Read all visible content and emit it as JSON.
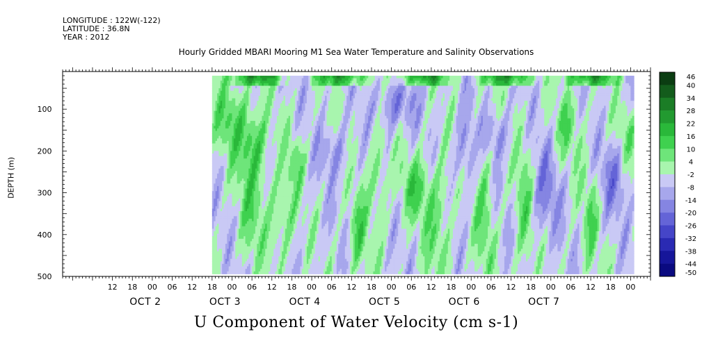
{
  "header": {
    "longitude": "LONGITUDE : 122W(-122)",
    "latitude": "LATITUDE : 36.8N",
    "year": "YEAR : 2012"
  },
  "chart_data": {
    "type": "heatmap",
    "title": "Hourly Gridded MBARI Mooring M1 Sea Water Temperature and Salinity Observations",
    "xlabel": "U Component of Water Velocity (cm s-1)",
    "ylabel": "DEPTH (m)",
    "x_unit": "hours since OCT 2 00:00 (2012)",
    "xlim": [
      -27,
      150
    ],
    "ylim": [
      500,
      10
    ],
    "data_depth_range": [
      20,
      490
    ],
    "data_time_range": [
      18,
      145
    ],
    "yticks": [
      100,
      200,
      300,
      400,
      500
    ],
    "xtick_hours": [
      "12",
      "18",
      "00",
      "06",
      "12",
      "18",
      "00",
      "06",
      "12",
      "18",
      "00",
      "06",
      "12",
      "18",
      "00",
      "06",
      "12",
      "18",
      "00",
      "06",
      "12",
      "18",
      "00",
      "06",
      "12",
      "18",
      "00"
    ],
    "date_labels": [
      "OCT 2",
      "OCT 3",
      "OCT 4",
      "OCT 5",
      "OCT 6",
      "OCT 7"
    ],
    "colorbar": {
      "labels": [
        "46",
        "40",
        "34",
        "28",
        "22",
        "16",
        "10",
        "4",
        "-2",
        "-8",
        "-14",
        "-20",
        "-26",
        "-32",
        "-38",
        "-44",
        "-50"
      ],
      "colors": [
        "#0b3d12",
        "#135c1c",
        "#1b7d26",
        "#229a30",
        "#2ab83a",
        "#3fd14f",
        "#6ee57a",
        "#a8f5ae",
        "#c9c9f5",
        "#a7a7ec",
        "#8585e2",
        "#6464d7",
        "#4545c8",
        "#2a2ab3",
        "#16169a",
        "#0a0a80"
      ]
    },
    "grid_model": {
      "mean_shift": -4,
      "gaussians": [
        {
          "t": 24,
          "z": 120,
          "st": 4,
          "sz": 60,
          "a": 14
        },
        {
          "t": 30,
          "z": 300,
          "st": 3,
          "sz": 110,
          "a": 12
        },
        {
          "t": 31,
          "z": 180,
          "st": 3,
          "sz": 50,
          "a": 12
        },
        {
          "t": 39,
          "z": 360,
          "st": 3,
          "sz": 70,
          "a": 12
        },
        {
          "t": 43,
          "z": 220,
          "st": 2,
          "sz": 40,
          "a": 10
        },
        {
          "t": 55,
          "z": 200,
          "st": 3,
          "sz": 40,
          "a": -10
        },
        {
          "t": 62,
          "z": 400,
          "st": 2,
          "sz": 70,
          "a": 14
        },
        {
          "t": 68,
          "z": 260,
          "st": 2,
          "sz": 80,
          "a": 12
        },
        {
          "t": 73,
          "z": 90,
          "st": 4,
          "sz": 40,
          "a": -14
        },
        {
          "t": 79,
          "z": 290,
          "st": 3,
          "sz": 50,
          "a": 14
        },
        {
          "t": 86,
          "z": 360,
          "st": 3,
          "sz": 100,
          "a": 12
        },
        {
          "t": 94,
          "z": 200,
          "st": 2,
          "sz": 60,
          "a": -12
        },
        {
          "t": 100,
          "z": 350,
          "st": 2,
          "sz": 110,
          "a": 12
        },
        {
          "t": 104,
          "z": 160,
          "st": 3,
          "sz": 40,
          "a": -10
        },
        {
          "t": 112,
          "z": 330,
          "st": 2,
          "sz": 120,
          "a": 12
        },
        {
          "t": 118,
          "z": 300,
          "st": 3,
          "sz": 80,
          "a": -12
        },
        {
          "t": 125,
          "z": 140,
          "st": 3,
          "sz": 60,
          "a": 10
        },
        {
          "t": 132,
          "z": 360,
          "st": 2,
          "sz": 90,
          "a": 10
        },
        {
          "t": 139,
          "z": 260,
          "st": 3,
          "sz": 60,
          "a": -12
        },
        {
          "t": 143,
          "z": 160,
          "st": 2,
          "sz": 50,
          "a": 10
        }
      ]
    }
  }
}
